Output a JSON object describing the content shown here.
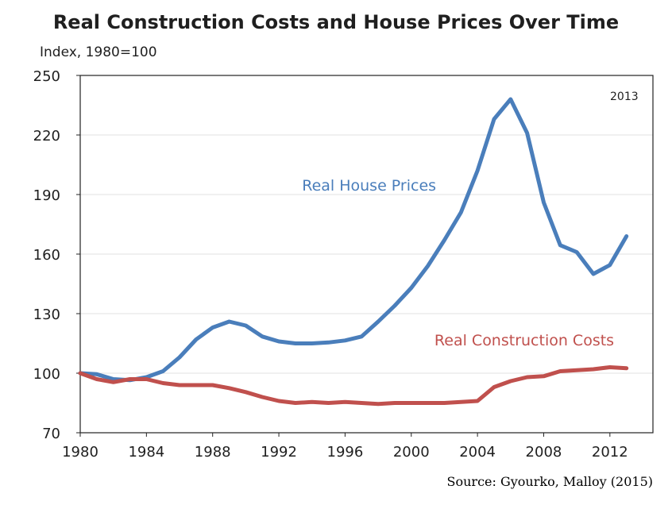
{
  "title": "Real Construction Costs and House Prices Over Time",
  "source": "Source: Gyourko, Malloy (2015)",
  "chart_data": {
    "type": "line",
    "title": "Real Construction Costs and House Prices Over Time",
    "ylabel": "Index, 1980=100",
    "xlabel": "",
    "xlim": [
      1980,
      2014.6
    ],
    "ylim": [
      70,
      250
    ],
    "x_ticks": [
      1980,
      1984,
      1988,
      1992,
      1996,
      2000,
      2004,
      2008,
      2012
    ],
    "y_ticks": [
      70,
      100,
      130,
      160,
      190,
      220,
      250
    ],
    "annotation": "2013",
    "grid": "horizontal",
    "series": [
      {
        "name": "Real House Prices",
        "color": "#4a7ebb",
        "label_pos": [
          1993.4,
          192
        ],
        "x": [
          1980,
          1981,
          1982,
          1983,
          1984,
          1985,
          1986,
          1987,
          1988,
          1989,
          1990,
          1991,
          1992,
          1993,
          1994,
          1995,
          1996,
          1997,
          1998,
          1999,
          2000,
          2001,
          2002,
          2003,
          2004,
          2005,
          2006,
          2007,
          2008,
          2009,
          2010,
          2011,
          2012,
          2013
        ],
        "values": [
          100,
          99.5,
          97,
          96.5,
          98,
          101,
          108,
          117,
          123,
          126,
          124,
          118.5,
          116,
          115,
          115,
          115.5,
          116.5,
          118.5,
          126,
          134,
          143,
          154,
          167,
          181,
          202,
          228,
          238,
          221,
          186,
          164.5,
          161,
          150,
          154.5,
          169
        ]
      },
      {
        "name": "Real Construction Costs",
        "color": "#c0504d",
        "label_pos": [
          2001.4,
          114
        ],
        "x": [
          1980,
          1981,
          1982,
          1983,
          1984,
          1985,
          1986,
          1987,
          1988,
          1989,
          1990,
          1991,
          1992,
          1993,
          1994,
          1995,
          1996,
          1997,
          1998,
          1999,
          2000,
          2001,
          2002,
          2003,
          2004,
          2005,
          2006,
          2007,
          2008,
          2009,
          2010,
          2011,
          2012,
          2013
        ],
        "values": [
          100,
          97,
          95.5,
          97,
          97,
          95,
          94,
          94,
          94,
          92.5,
          90.5,
          88,
          86,
          85,
          85.5,
          85,
          85.5,
          85,
          84.5,
          85,
          85,
          85,
          85,
          85.5,
          86,
          93,
          96,
          98,
          98.5,
          101,
          101.5,
          102,
          103,
          102.5
        ]
      }
    ]
  }
}
